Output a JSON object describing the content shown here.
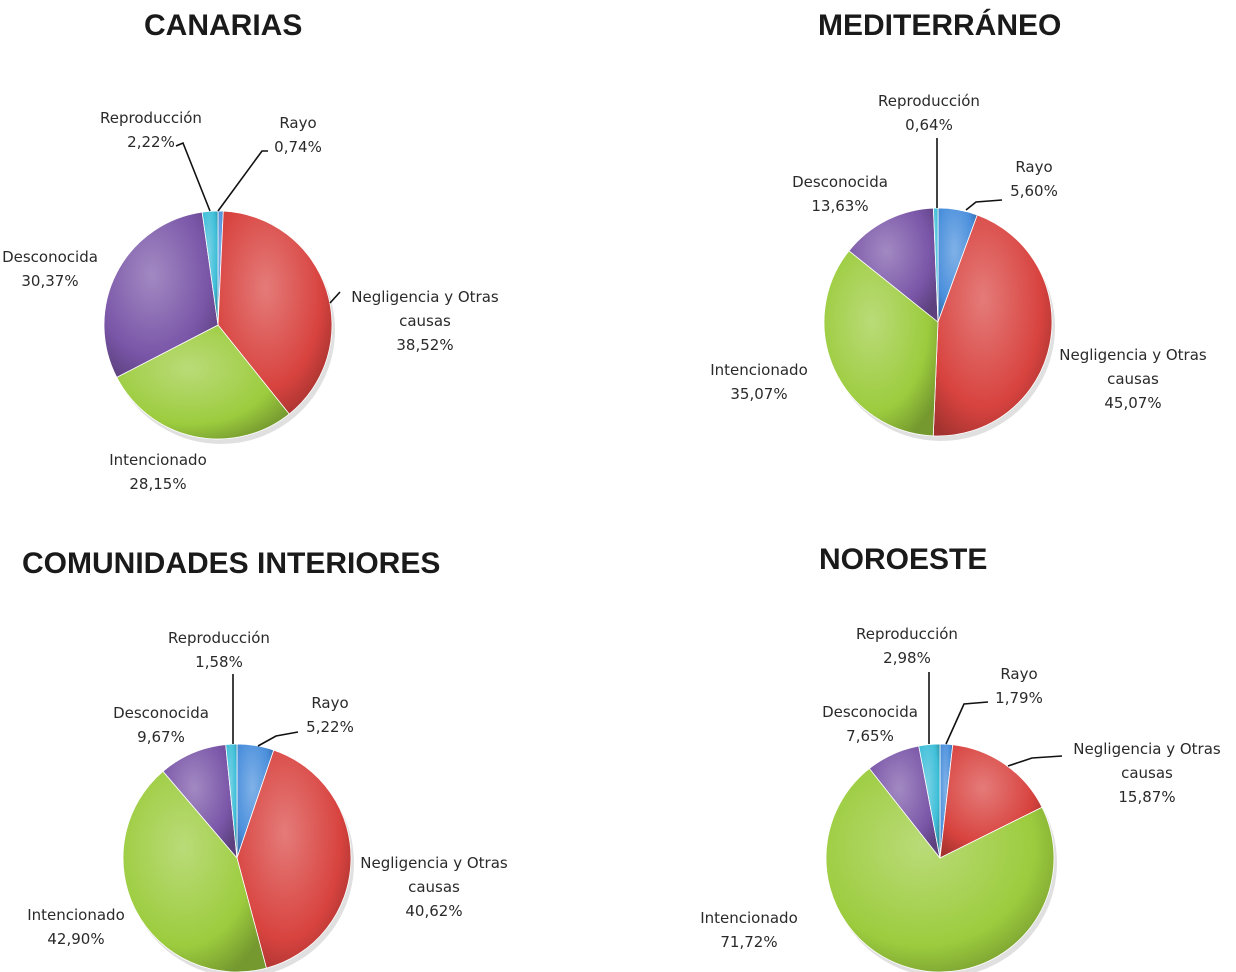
{
  "colors": {
    "Rayo": "#4a8fdc",
    "Negligencia y Otras causas": "#d8433f",
    "Intencionado": "#9ccc3e",
    "Desconocida": "#7a56a8",
    "Reproducción": "#3fbfd9"
  },
  "chart_data": [
    {
      "type": "pie",
      "title": "CANARIAS",
      "slices": [
        {
          "label": "Rayo",
          "value": 0.74,
          "display": "0,74%"
        },
        {
          "label": "Negligencia y Otras causas",
          "value": 38.52,
          "display": "38,52%"
        },
        {
          "label": "Intencionado",
          "value": 28.15,
          "display": "28,15%"
        },
        {
          "label": "Desconocida",
          "value": 30.37,
          "display": "30,37%"
        },
        {
          "label": "Reproducción",
          "value": 2.22,
          "display": "2,22%"
        }
      ]
    },
    {
      "type": "pie",
      "title": "MEDITERRÁNEO",
      "slices": [
        {
          "label": "Rayo",
          "value": 5.6,
          "display": "5,60%"
        },
        {
          "label": "Negligencia y Otras causas",
          "value": 45.07,
          "display": "45,07%"
        },
        {
          "label": "Intencionado",
          "value": 35.07,
          "display": "35,07%"
        },
        {
          "label": "Desconocida",
          "value": 13.63,
          "display": "13,63%"
        },
        {
          "label": "Reproducción",
          "value": 0.64,
          "display": "0,64%"
        }
      ]
    },
    {
      "type": "pie",
      "title": "COMUNIDADES INTERIORES",
      "slices": [
        {
          "label": "Rayo",
          "value": 5.22,
          "display": "5,22%"
        },
        {
          "label": "Negligencia y Otras causas",
          "value": 40.62,
          "display": "40,62%"
        },
        {
          "label": "Intencionado",
          "value": 42.9,
          "display": "42,90%"
        },
        {
          "label": "Desconocida",
          "value": 9.67,
          "display": "9,67%"
        },
        {
          "label": "Reproducción",
          "value": 1.58,
          "display": "1,58%"
        }
      ]
    },
    {
      "type": "pie",
      "title": "NOROESTE",
      "slices": [
        {
          "label": "Rayo",
          "value": 1.79,
          "display": "1,79%"
        },
        {
          "label": "Negligencia y Otras causas",
          "value": 15.87,
          "display": "15,87%"
        },
        {
          "label": "Intencionado",
          "value": 71.72,
          "display": "71,72%"
        },
        {
          "label": "Desconocida",
          "value": 7.65,
          "display": "7,65%"
        },
        {
          "label": "Reproducción",
          "value": 2.98,
          "display": "2,98%"
        }
      ]
    }
  ]
}
